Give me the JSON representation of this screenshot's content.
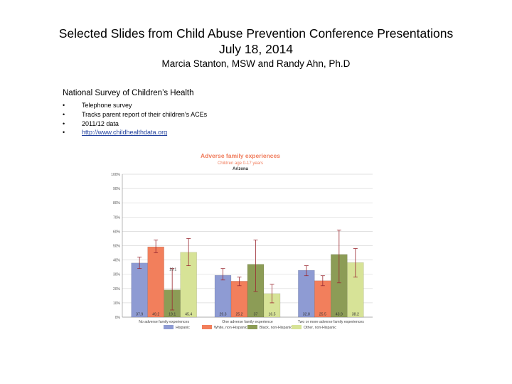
{
  "slide": {
    "title_line1": "Selected Slides from Child Abuse Prevention Conference Presentations",
    "title_line2": "July 18, 2014",
    "authors": "Marcia Stanton, MSW and Randy Ahn, Ph.D"
  },
  "survey": {
    "title": "National Survey of Children’s Health",
    "bullets": [
      "Telephone survey",
      "Tracks parent report of their children’s ACEs",
      "2011/12 data",
      "http://www.childhealthdata.org"
    ]
  },
  "colors": {
    "hispanic": "#8e9bd3",
    "white": "#f27f5c",
    "black": "#8c9c56",
    "other": "#d7e397",
    "title": "#f07c5c",
    "error_bar": "#9b2a32"
  },
  "chart_data": {
    "type": "bar",
    "title": "Adverse family experiences",
    "subtitle": "Children age 0-17 years",
    "region": "Arizona",
    "categories": [
      "No adverse family experiences",
      "One adverse family experience",
      "Two or more adverse family experiences"
    ],
    "series": [
      {
        "name": "Hispanic",
        "values": [
          37.9,
          29.3,
          32.8
        ],
        "error_low": [
          34,
          26,
          29
        ],
        "error_high": [
          42,
          34,
          36
        ]
      },
      {
        "name": "White, non-Hispanic",
        "values": [
          49.2,
          25.2,
          25.5
        ],
        "error_low": [
          45,
          22,
          22
        ],
        "error_high": [
          54,
          28,
          29
        ]
      },
      {
        "name": "Black, non-Hispanic",
        "values": [
          19.1,
          37.0,
          43.9
        ],
        "error_low": [
          5,
          18,
          24
        ],
        "error_high": [
          34,
          54,
          61
        ]
      },
      {
        "name": "Other, non-Hispanic",
        "values": [
          45.4,
          16.5,
          38.2
        ],
        "error_low": [
          36,
          10,
          28
        ],
        "error_high": [
          55,
          23,
          48
        ]
      }
    ],
    "y_ticks": [
      "0%",
      "10%",
      "20%",
      "30%",
      "40%",
      "50%",
      "60%",
      "70%",
      "80%",
      "90%",
      "100%"
    ],
    "ylim": [
      0,
      100
    ],
    "grid": true,
    "legend_position": "bottom",
    "labels_inside_bar_bottom": true,
    "label_above_bar": "19.1"
  }
}
